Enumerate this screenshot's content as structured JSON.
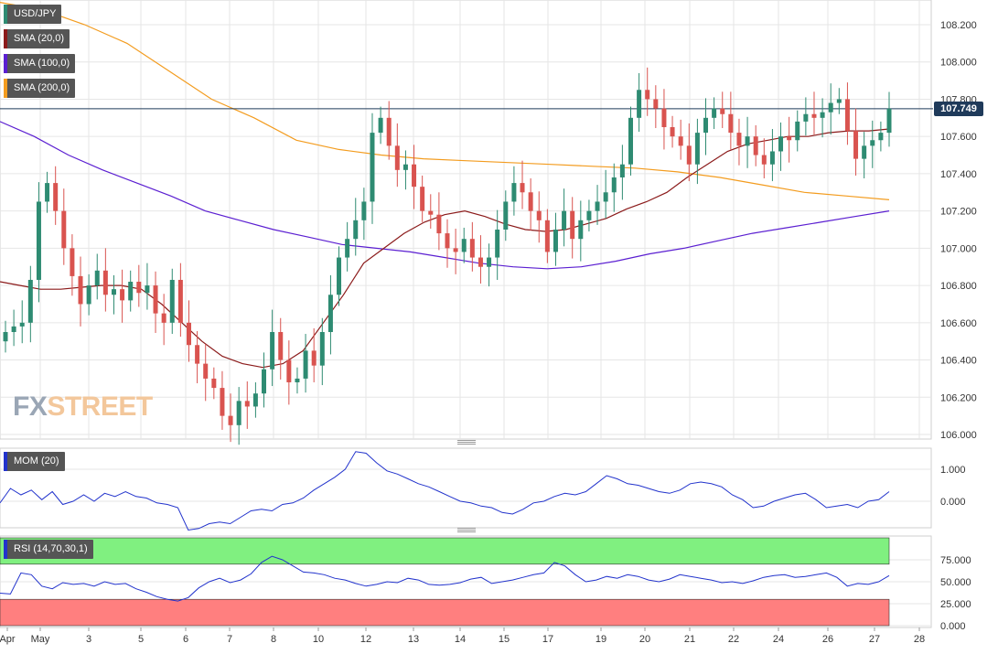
{
  "symbol": "USD/JPY",
  "indicators": {
    "sma20": {
      "label": "SMA (20,0)",
      "color": "#8b1a1a"
    },
    "sma100": {
      "label": "SMA (100,0)",
      "color": "#5b1fd1"
    },
    "sma200": {
      "label": "SMA (200,0)",
      "color": "#f39c1f"
    }
  },
  "current_price": "107.749",
  "brand": {
    "part1": "FX",
    "part2": "STREET"
  },
  "momentum_panel": {
    "label": "MOM (20)",
    "ticks": [
      "1.000",
      "0.000"
    ]
  },
  "rsi_panel": {
    "label": "RSI (14,70,30,1)",
    "ticks": [
      "75.000",
      "50.000",
      "25.000",
      "0.000"
    ]
  },
  "price_axis_ticks": [
    "108.200",
    "108.000",
    "107.800",
    "107.600",
    "107.400",
    "107.200",
    "107.000",
    "106.800",
    "106.600",
    "106.400",
    "106.200",
    "106.000"
  ],
  "date_axis_ticks": [
    "Apr",
    "May",
    "3",
    "5",
    "6",
    "7",
    "8",
    "10",
    "12",
    "13",
    "14",
    "15",
    "17",
    "19",
    "20",
    "21",
    "22",
    "24",
    "26",
    "27",
    "28"
  ],
  "colors": {
    "bull": "#2e8b72",
    "bear": "#d9534f",
    "grid": "#e6e6e6",
    "price_line": "#1f3a5a",
    "mom_line": "#2233cc",
    "overbought_zone": "#80f080",
    "oversold_zone": "#ff7f7f"
  },
  "chart_data": {
    "type": "candlestick",
    "symbol": "USD/JPY",
    "ylim": [
      106.0,
      108.2
    ],
    "current_price": 107.749,
    "candles_close": [
      106.55,
      106.58,
      106.6,
      106.83,
      107.25,
      107.35,
      107.2,
      107.0,
      106.85,
      106.7,
      106.8,
      106.88,
      106.75,
      106.78,
      106.72,
      106.82,
      106.76,
      106.8,
      106.65,
      106.6,
      106.83,
      106.6,
      106.48,
      106.38,
      106.3,
      106.25,
      106.1,
      106.05,
      106.18,
      106.15,
      106.22,
      106.35,
      106.55,
      106.4,
      106.28,
      106.3,
      106.45,
      106.37,
      106.55,
      106.75,
      106.95,
      107.05,
      107.15,
      107.25,
      107.62,
      107.7,
      107.55,
      107.42,
      107.45,
      107.33,
      107.2,
      107.18,
      107.08,
      107.0,
      106.98,
      107.05,
      106.95,
      106.9,
      106.95,
      107.1,
      107.25,
      107.35,
      107.3,
      107.2,
      107.15,
      106.98,
      107.1,
      107.2,
      107.05,
      107.15,
      107.2,
      107.25,
      107.3,
      107.38,
      107.45,
      107.7,
      107.85,
      107.8,
      107.75,
      107.65,
      107.6,
      107.55,
      107.45,
      107.62,
      107.7,
      107.75,
      107.72,
      107.62,
      107.55,
      107.6,
      107.5,
      107.45,
      107.52,
      107.6,
      107.58,
      107.68,
      107.72,
      107.7,
      107.73,
      107.78,
      107.8,
      107.63,
      107.48,
      107.55,
      107.58,
      107.62,
      107.749
    ],
    "sma20": [
      106.82,
      106.8,
      106.78,
      106.78,
      106.79,
      106.8,
      106.8,
      106.78,
      106.7,
      106.6,
      106.5,
      106.42,
      106.38,
      106.36,
      106.38,
      106.45,
      106.6,
      106.75,
      106.92,
      107.0,
      107.08,
      107.14,
      107.18,
      107.2,
      107.17,
      107.13,
      107.1,
      107.09,
      107.1,
      107.13,
      107.16,
      107.21,
      107.25,
      107.3,
      107.38,
      107.45,
      107.52,
      107.56,
      107.58,
      107.6,
      107.6,
      107.62,
      107.63,
      107.63,
      107.64
    ],
    "sma100": [
      107.68,
      107.6,
      107.5,
      107.42,
      107.35,
      107.28,
      107.2,
      107.15,
      107.1,
      107.06,
      107.02,
      107.0,
      106.98,
      106.95,
      106.92,
      106.9,
      106.89,
      106.9,
      106.93,
      106.97,
      107.0,
      107.04,
      107.08,
      107.11,
      107.14,
      107.17,
      107.2
    ],
    "sma200": [
      108.32,
      108.28,
      108.2,
      108.1,
      107.95,
      107.8,
      107.7,
      107.58,
      107.53,
      107.5,
      107.48,
      107.47,
      107.46,
      107.45,
      107.44,
      107.43,
      107.41,
      107.38,
      107.34,
      107.3,
      107.28,
      107.26
    ],
    "momentum": {
      "ylim": [
        -0.8,
        1.6
      ],
      "values": [
        -0.05,
        0.4,
        0.2,
        0.35,
        0.05,
        0.3,
        -0.1,
        0.0,
        0.2,
        0.0,
        0.25,
        0.15,
        0.3,
        0.15,
        0.1,
        -0.05,
        -0.1,
        -0.2,
        -0.9,
        -0.85,
        -0.7,
        -0.65,
        -0.7,
        -0.5,
        -0.3,
        -0.25,
        -0.3,
        -0.1,
        -0.05,
        0.1,
        0.35,
        0.55,
        0.75,
        1.0,
        1.55,
        1.5,
        1.2,
        0.95,
        0.85,
        0.7,
        0.55,
        0.45,
        0.3,
        0.15,
        0.0,
        -0.05,
        -0.15,
        -0.2,
        -0.35,
        -0.4,
        -0.25,
        -0.05,
        0.0,
        0.15,
        0.25,
        0.2,
        0.3,
        0.55,
        0.8,
        0.7,
        0.55,
        0.5,
        0.4,
        0.3,
        0.25,
        0.35,
        0.55,
        0.6,
        0.55,
        0.45,
        0.2,
        0.05,
        -0.2,
        -0.15,
        0.0,
        0.1,
        0.2,
        0.25,
        0.05,
        -0.2,
        -0.15,
        -0.1,
        -0.2,
        0.0,
        0.05,
        0.3
      ]
    },
    "rsi": {
      "ylim": [
        0,
        100
      ],
      "overbought": 70,
      "oversold": 30,
      "values": [
        37,
        36,
        60,
        58,
        45,
        42,
        49,
        47,
        48,
        45,
        50,
        47,
        48,
        42,
        38,
        33,
        30,
        28,
        32,
        43,
        50,
        54,
        49,
        52,
        59,
        72,
        79,
        75,
        68,
        61,
        60,
        58,
        54,
        52,
        48,
        45,
        47,
        50,
        49,
        54,
        52,
        47,
        46,
        47,
        49,
        53,
        55,
        48,
        50,
        52,
        55,
        58,
        60,
        72,
        68,
        58,
        50,
        52,
        56,
        54,
        58,
        56,
        52,
        50,
        53,
        58,
        56,
        54,
        52,
        49,
        50,
        48,
        51,
        55,
        57,
        58,
        55,
        56,
        58,
        60,
        55,
        45,
        48,
        47,
        50,
        57
      ]
    }
  }
}
